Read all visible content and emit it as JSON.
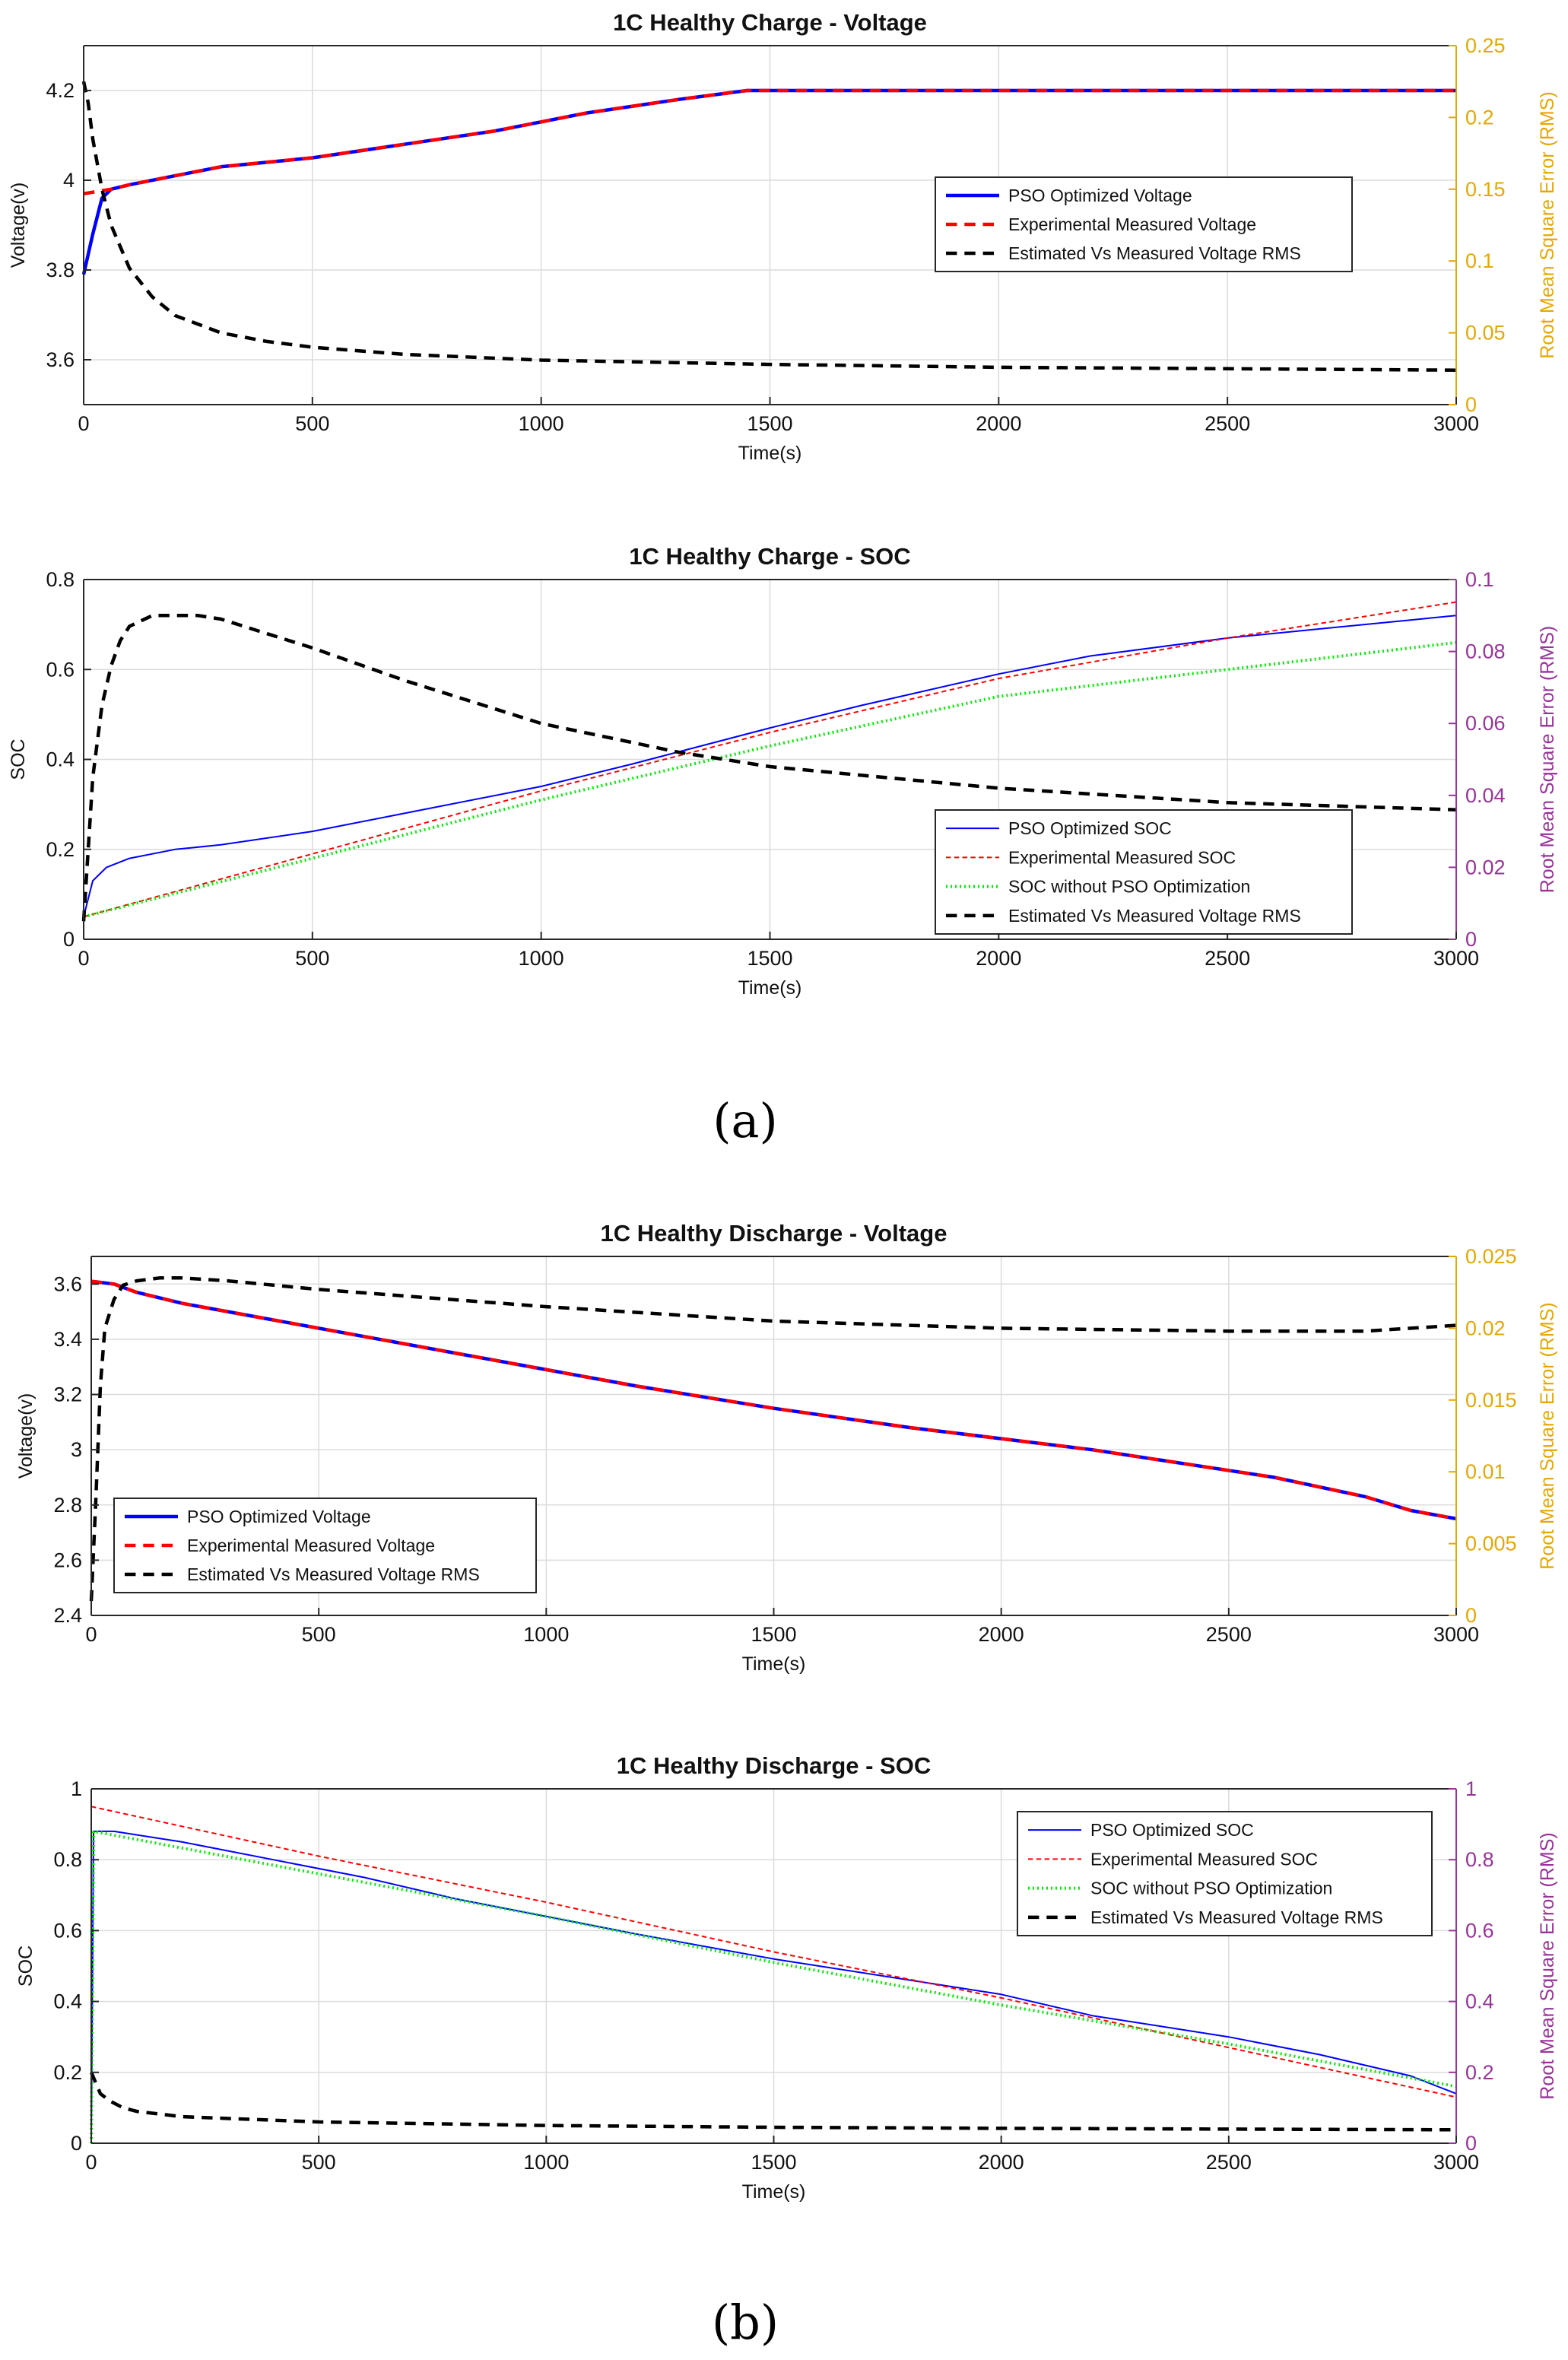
{
  "figure": {
    "caption_a": "(a)",
    "caption_b": "(b)"
  },
  "chart_data": [
    {
      "type": "line",
      "title": "1C Healthy Charge - Voltage",
      "xlabel": "Time(s)",
      "ylabel": "Voltage(v)",
      "y2label": "Root Mean Square Error (RMS)",
      "xlim": [
        0,
        3000
      ],
      "ylim": [
        3.5,
        4.3
      ],
      "y2lim": [
        0,
        0.25
      ],
      "xticks": [
        0,
        500,
        1000,
        1500,
        2000,
        2500,
        3000
      ],
      "yticks": [
        3.6,
        3.8,
        4,
        4.2
      ],
      "y2ticks": [
        0,
        0.05,
        0.1,
        0.15,
        0.2,
        0.25
      ],
      "grid": true,
      "y2color": "#e6a700",
      "legend_position": "right-center",
      "series": [
        {
          "name": "PSO Optimized Voltage",
          "axis": "left",
          "color": "#0000ff",
          "style": "solid",
          "width": 4.5,
          "x": [
            0,
            20,
            40,
            60,
            100,
            200,
            300,
            400,
            500,
            700,
            900,
            1100,
            1300,
            1450,
            1500,
            2000,
            2500,
            3000
          ],
          "y": [
            3.79,
            3.88,
            3.96,
            3.98,
            3.99,
            4.01,
            4.03,
            4.04,
            4.05,
            4.08,
            4.11,
            4.15,
            4.18,
            4.2,
            4.2,
            4.2,
            4.2,
            4.2
          ]
        },
        {
          "name": "Experimental Measured Voltage",
          "axis": "left",
          "color": "#ff0000",
          "style": "dashed",
          "width": 4.5,
          "x": [
            0,
            60,
            100,
            200,
            300,
            400,
            500,
            700,
            900,
            1100,
            1300,
            1450,
            1500,
            2000,
            2500,
            3000
          ],
          "y": [
            3.97,
            3.98,
            3.99,
            4.01,
            4.03,
            4.04,
            4.05,
            4.08,
            4.11,
            4.15,
            4.18,
            4.2,
            4.2,
            4.2,
            4.2,
            4.2
          ]
        },
        {
          "name": "Estimated Vs Measured Voltage RMS",
          "axis": "right",
          "color": "#000000",
          "style": "dashed",
          "width": 4.5,
          "x": [
            0,
            10,
            20,
            40,
            60,
            100,
            150,
            200,
            300,
            400,
            500,
            700,
            1000,
            1500,
            2000,
            2500,
            3000
          ],
          "y": [
            0.225,
            0.21,
            0.185,
            0.15,
            0.125,
            0.095,
            0.075,
            0.062,
            0.05,
            0.044,
            0.04,
            0.035,
            0.031,
            0.028,
            0.026,
            0.025,
            0.024
          ]
        }
      ]
    },
    {
      "type": "line",
      "title": "1C Healthy Charge - SOC",
      "xlabel": "Time(s)",
      "ylabel": "SOC",
      "y2label": "Root Mean Square Error (RMS)",
      "xlim": [
        0,
        3000
      ],
      "ylim": [
        0,
        0.8
      ],
      "y2lim": [
        0,
        0.1
      ],
      "xticks": [
        0,
        500,
        1000,
        1500,
        2000,
        2500,
        3000
      ],
      "yticks": [
        0,
        0.2,
        0.4,
        0.6,
        0.8
      ],
      "y2ticks": [
        0,
        0.02,
        0.04,
        0.06,
        0.08,
        0.1
      ],
      "grid": true,
      "y2color": "#993399",
      "legend_position": "bottom-right",
      "series": [
        {
          "name": "PSO Optimized SOC",
          "axis": "left",
          "color": "#0000ff",
          "style": "solid",
          "width": 2,
          "x": [
            0,
            20,
            50,
            100,
            200,
            300,
            500,
            700,
            1000,
            1200,
            1500,
            1700,
            2000,
            2200,
            2500,
            2700,
            2900,
            3000
          ],
          "y": [
            0.05,
            0.13,
            0.16,
            0.18,
            0.2,
            0.21,
            0.24,
            0.28,
            0.34,
            0.39,
            0.47,
            0.52,
            0.59,
            0.63,
            0.67,
            0.69,
            0.71,
            0.72
          ]
        },
        {
          "name": "Experimental Measured SOC",
          "axis": "left",
          "color": "#ff0000",
          "style": "dashed",
          "width": 2,
          "x": [
            0,
            500,
            1000,
            1500,
            2000,
            2500,
            3000
          ],
          "y": [
            0.05,
            0.19,
            0.33,
            0.46,
            0.58,
            0.67,
            0.75
          ]
        },
        {
          "name": "SOC without PSO Optimization",
          "axis": "left",
          "color": "#00ee00",
          "style": "dotted",
          "width": 4,
          "x": [
            0,
            500,
            1000,
            1500,
            2000,
            2500,
            3000
          ],
          "y": [
            0.05,
            0.18,
            0.31,
            0.43,
            0.54,
            0.6,
            0.66
          ]
        },
        {
          "name": "Estimated Vs Measured Voltage RMS",
          "axis": "right",
          "color": "#000000",
          "style": "dashed",
          "width": 4.5,
          "x": [
            0,
            20,
            40,
            60,
            80,
            100,
            150,
            200,
            250,
            300,
            400,
            500,
            700,
            1000,
            1300,
            1500,
            2000,
            2500,
            3000
          ],
          "y": [
            0.005,
            0.045,
            0.065,
            0.076,
            0.083,
            0.087,
            0.09,
            0.09,
            0.09,
            0.089,
            0.085,
            0.081,
            0.072,
            0.06,
            0.052,
            0.048,
            0.042,
            0.038,
            0.036
          ]
        }
      ]
    },
    {
      "type": "line",
      "title": "1C Healthy Discharge - Voltage",
      "xlabel": "Time(s)",
      "ylabel": "Voltage(v)",
      "y2label": "Root Mean Square Error (RMS)",
      "xlim": [
        0,
        3000
      ],
      "ylim": [
        2.4,
        3.7
      ],
      "y2lim": [
        0,
        0.025
      ],
      "xticks": [
        0,
        500,
        1000,
        1500,
        2000,
        2500,
        3000
      ],
      "yticks": [
        2.4,
        2.6,
        2.8,
        3,
        3.2,
        3.4,
        3.6
      ],
      "y2ticks": [
        0,
        0.005,
        0.01,
        0.015,
        0.02,
        0.025
      ],
      "grid": true,
      "y2color": "#e6a700",
      "legend_position": "bottom-left",
      "series": [
        {
          "name": "PSO Optimized Voltage",
          "axis": "left",
          "color": "#0000ff",
          "style": "solid",
          "width": 4.5,
          "x": [
            0,
            50,
            100,
            200,
            400,
            600,
            800,
            1000,
            1200,
            1500,
            1800,
            2000,
            2200,
            2400,
            2600,
            2800,
            2900,
            3000
          ],
          "y": [
            3.61,
            3.6,
            3.57,
            3.53,
            3.47,
            3.41,
            3.35,
            3.29,
            3.23,
            3.15,
            3.08,
            3.04,
            3,
            2.95,
            2.9,
            2.83,
            2.78,
            2.75
          ]
        },
        {
          "name": "Experimental Measured Voltage",
          "axis": "left",
          "color": "#ff0000",
          "style": "dashed",
          "width": 4.5,
          "x": [
            0,
            50,
            100,
            200,
            400,
            600,
            800,
            1000,
            1200,
            1500,
            1800,
            2000,
            2200,
            2400,
            2600,
            2800,
            2900,
            3000
          ],
          "y": [
            3.61,
            3.6,
            3.57,
            3.53,
            3.47,
            3.41,
            3.35,
            3.29,
            3.23,
            3.15,
            3.08,
            3.04,
            3,
            2.95,
            2.9,
            2.83,
            2.78,
            2.75
          ]
        },
        {
          "name": "Estimated Vs Measured Voltage RMS",
          "axis": "right",
          "color": "#000000",
          "style": "dashed",
          "width": 4.5,
          "x": [
            0,
            10,
            20,
            30,
            50,
            70,
            100,
            150,
            200,
            300,
            500,
            1000,
            1500,
            2000,
            2500,
            2800,
            3000
          ],
          "y": [
            0.001,
            0.008,
            0.016,
            0.02,
            0.022,
            0.023,
            0.0233,
            0.0235,
            0.0235,
            0.0233,
            0.0227,
            0.0215,
            0.0205,
            0.02,
            0.0198,
            0.0198,
            0.0202
          ]
        }
      ]
    },
    {
      "type": "line",
      "title": "1C Healthy Discharge - SOC",
      "xlabel": "Time(s)",
      "ylabel": "SOC",
      "y2label": "Root Mean Square Error (RMS)",
      "xlim": [
        0,
        3000
      ],
      "ylim": [
        0,
        1
      ],
      "y2lim": [
        0,
        1
      ],
      "xticks": [
        0,
        500,
        1000,
        1500,
        2000,
        2500,
        3000
      ],
      "yticks": [
        0,
        0.2,
        0.4,
        0.6,
        0.8,
        1
      ],
      "y2ticks": [
        0,
        0.2,
        0.4,
        0.6,
        0.8,
        1
      ],
      "grid": true,
      "y2color": "#993399",
      "legend_position": "top-right",
      "series": [
        {
          "name": "PSO Optimized SOC",
          "axis": "left",
          "color": "#0000ff",
          "style": "solid",
          "width": 2,
          "x": [
            0,
            5,
            50,
            200,
            400,
            600,
            800,
            1000,
            1200,
            1500,
            1800,
            2000,
            2200,
            2500,
            2700,
            2900,
            3000
          ],
          "y": [
            0.0,
            0.88,
            0.88,
            0.85,
            0.8,
            0.75,
            0.69,
            0.64,
            0.59,
            0.52,
            0.46,
            0.42,
            0.36,
            0.3,
            0.25,
            0.19,
            0.14
          ]
        },
        {
          "name": "Experimental Measured SOC",
          "axis": "left",
          "color": "#ff0000",
          "style": "dashed",
          "width": 2,
          "x": [
            0,
            500,
            1000,
            1500,
            2000,
            2500,
            3000
          ],
          "y": [
            0.95,
            0.81,
            0.68,
            0.54,
            0.41,
            0.27,
            0.13
          ]
        },
        {
          "name": "SOC without PSO Optimization",
          "axis": "left",
          "color": "#00ee00",
          "style": "dotted",
          "width": 4,
          "x": [
            0,
            5,
            500,
            1000,
            1500,
            2000,
            2500,
            3000
          ],
          "y": [
            0.0,
            0.88,
            0.76,
            0.64,
            0.51,
            0.39,
            0.28,
            0.16
          ]
        },
        {
          "name": "Estimated Vs Measured Voltage RMS",
          "axis": "right",
          "color": "#000000",
          "style": "dashed",
          "width": 4.5,
          "x": [
            0,
            10,
            20,
            40,
            70,
            100,
            200,
            500,
            1000,
            1500,
            2000,
            2500,
            3000
          ],
          "y": [
            0.2,
            0.17,
            0.14,
            0.12,
            0.1,
            0.09,
            0.075,
            0.06,
            0.05,
            0.045,
            0.042,
            0.04,
            0.038
          ]
        }
      ]
    }
  ]
}
